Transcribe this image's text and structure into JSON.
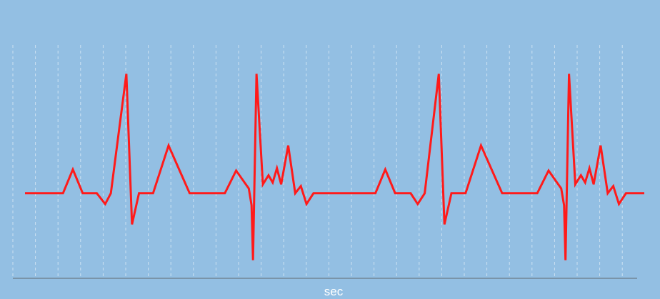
{
  "chart_data": {
    "type": "line",
    "xlabel": "sec",
    "ylabel": "",
    "grid": "vertical dashed",
    "legend": "none",
    "colors": {
      "background": "#93bfe3",
      "series": "#ff1a1a",
      "grid": "#ffffff",
      "axis": "#6c7a86",
      "label": "#ffffff"
    },
    "xlim": [
      0,
      44
    ],
    "ylim": [
      -1.4,
      2.4
    ],
    "series": [
      {
        "values": [
          [
            0.0,
            0.0
          ],
          [
            2.7,
            0.0
          ],
          [
            3.4,
            0.4
          ],
          [
            4.1,
            0.0
          ],
          [
            5.1,
            0.0
          ],
          [
            5.7,
            -0.18
          ],
          [
            6.1,
            0.0
          ],
          [
            7.2,
            2.0
          ],
          [
            7.6,
            -0.52
          ],
          [
            8.1,
            0.0
          ],
          [
            9.1,
            0.0
          ],
          [
            10.2,
            0.8
          ],
          [
            11.7,
            0.0
          ],
          [
            14.2,
            0.0
          ],
          [
            15.0,
            0.38
          ],
          [
            15.6,
            0.18
          ],
          [
            15.9,
            0.08
          ],
          [
            16.1,
            -0.2
          ],
          [
            16.2,
            -1.12
          ],
          [
            16.45,
            2.0
          ],
          [
            16.9,
            0.15
          ],
          [
            17.3,
            0.3
          ],
          [
            17.6,
            0.18
          ],
          [
            17.9,
            0.42
          ],
          [
            18.2,
            0.15
          ],
          [
            18.7,
            0.8
          ],
          [
            19.2,
            0.0
          ],
          [
            19.6,
            0.12
          ],
          [
            20.0,
            -0.18
          ],
          [
            20.5,
            0.0
          ],
          [
            24.9,
            0.0
          ],
          [
            25.6,
            0.4
          ],
          [
            26.3,
            0.0
          ],
          [
            27.4,
            0.0
          ],
          [
            27.9,
            -0.18
          ],
          [
            28.4,
            0.0
          ],
          [
            29.4,
            2.0
          ],
          [
            29.8,
            -0.52
          ],
          [
            30.3,
            0.0
          ],
          [
            31.3,
            0.0
          ],
          [
            32.4,
            0.8
          ],
          [
            33.9,
            0.0
          ],
          [
            36.4,
            0.0
          ],
          [
            37.2,
            0.38
          ],
          [
            37.8,
            0.18
          ],
          [
            38.1,
            0.08
          ],
          [
            38.3,
            -0.2
          ],
          [
            38.4,
            -1.12
          ],
          [
            38.65,
            2.0
          ],
          [
            39.1,
            0.15
          ],
          [
            39.5,
            0.3
          ],
          [
            39.8,
            0.18
          ],
          [
            40.1,
            0.42
          ],
          [
            40.4,
            0.15
          ],
          [
            40.9,
            0.8
          ],
          [
            41.4,
            0.0
          ],
          [
            41.8,
            0.12
          ],
          [
            42.2,
            -0.18
          ],
          [
            42.7,
            0.0
          ],
          [
            44.0,
            0.0
          ]
        ]
      }
    ]
  }
}
